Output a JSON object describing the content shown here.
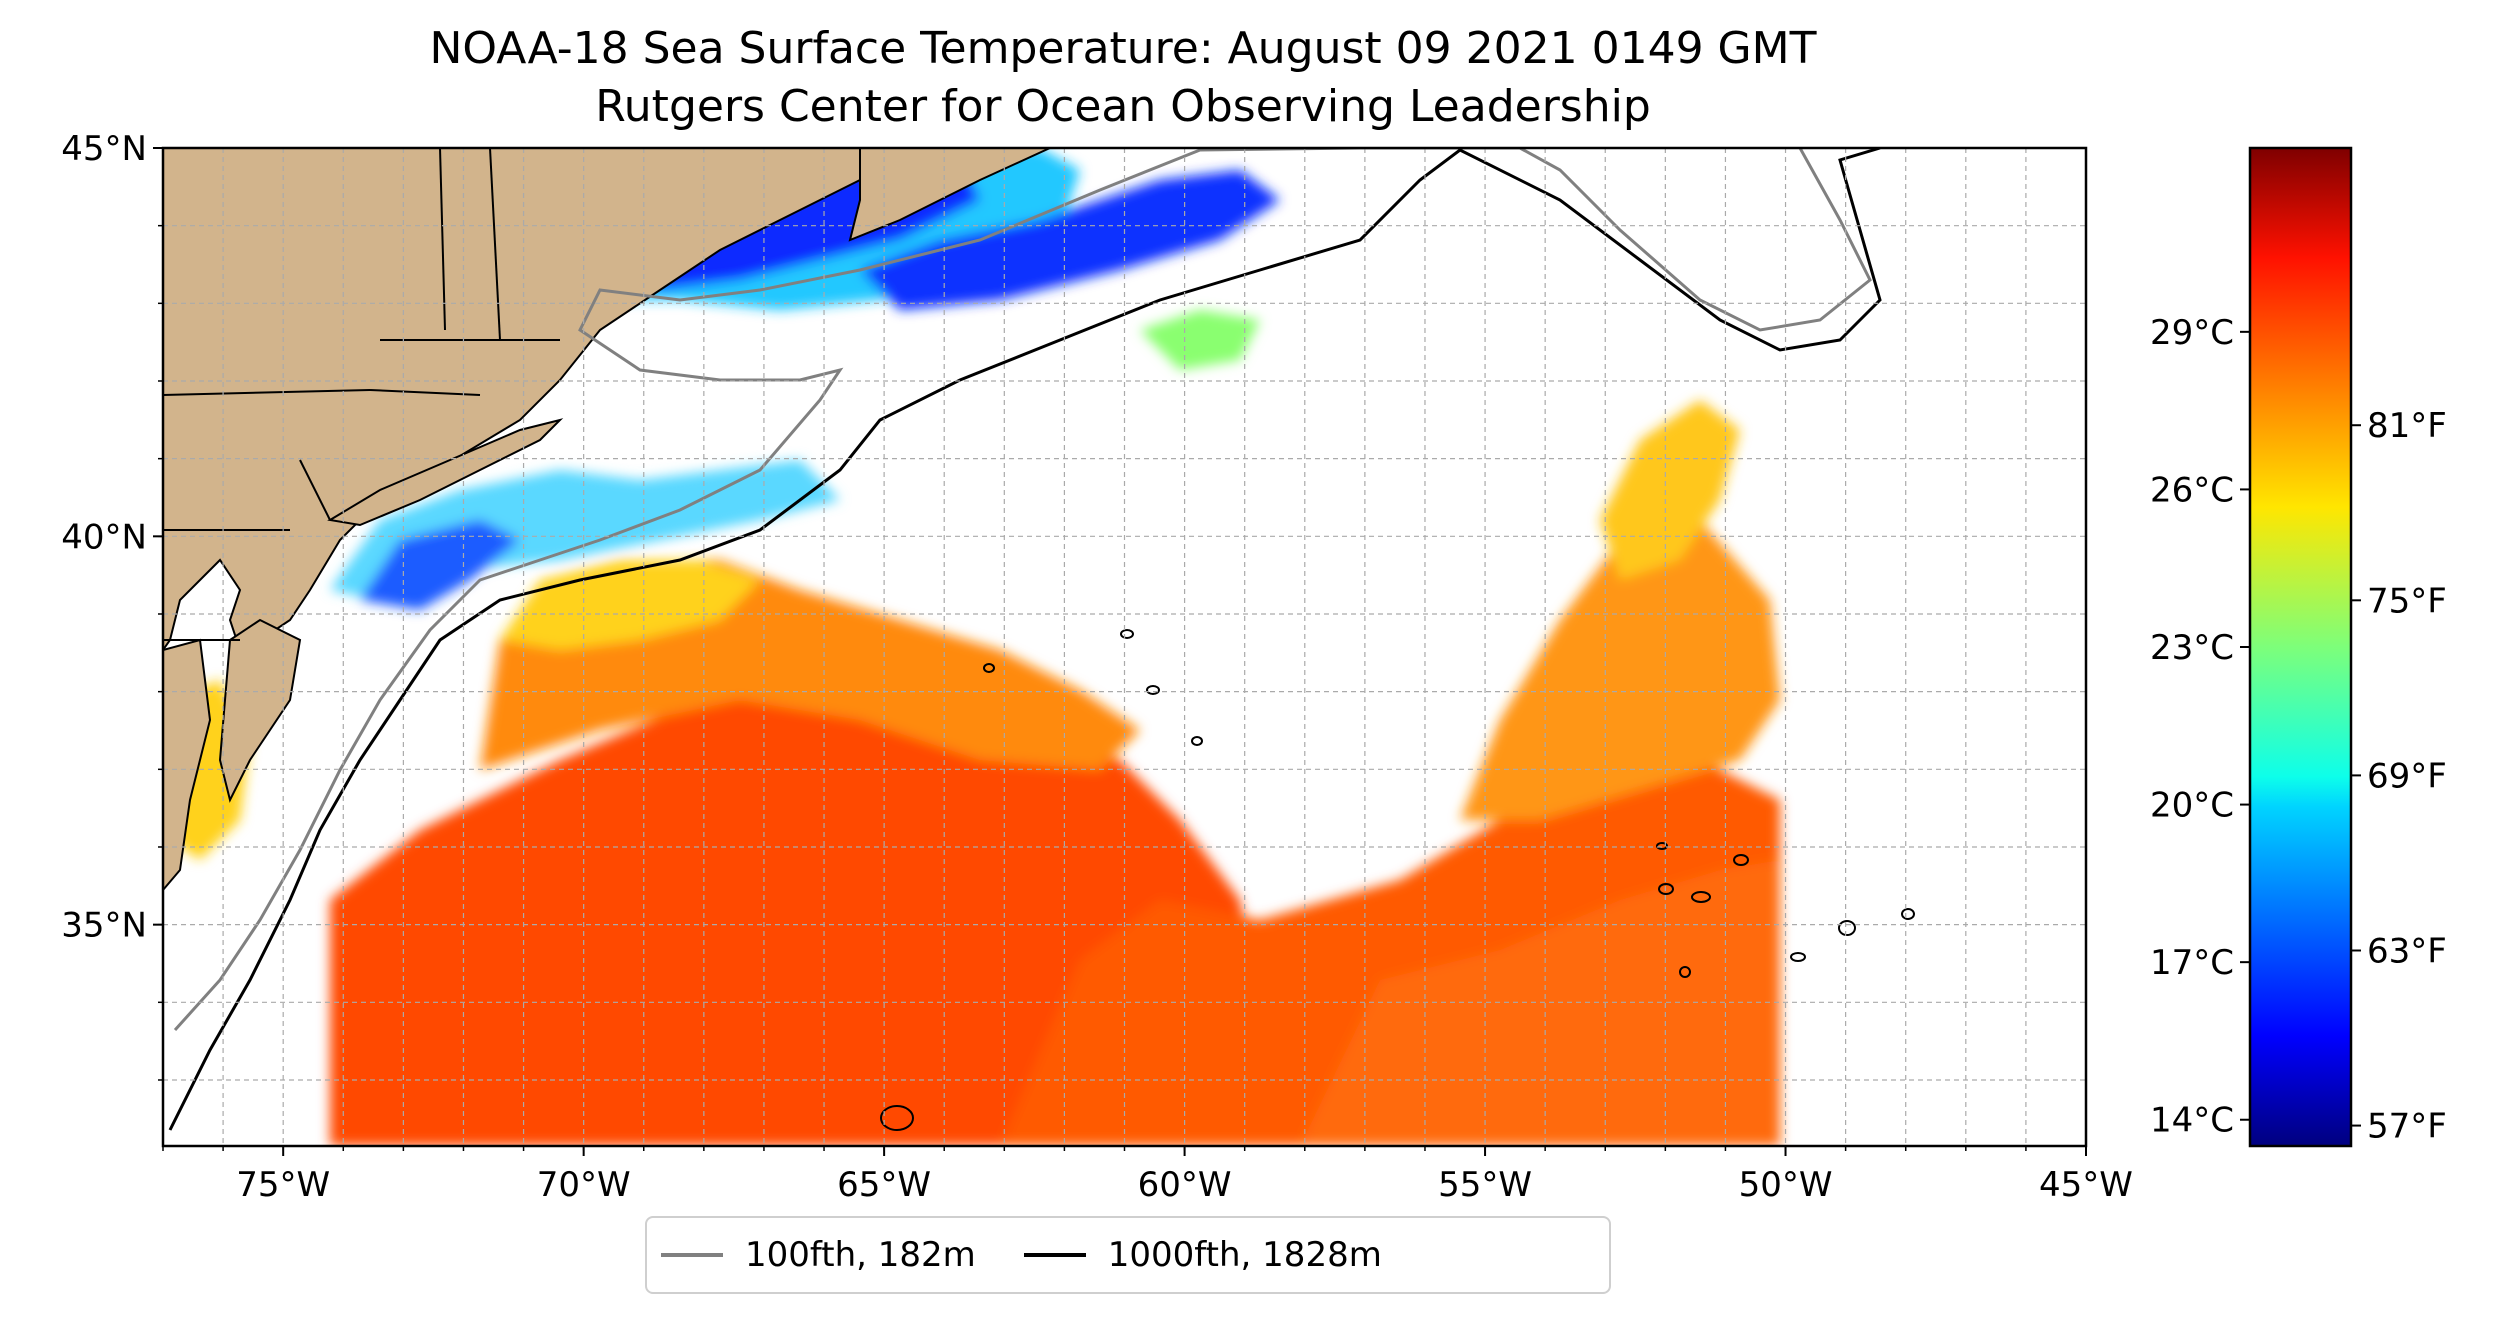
{
  "title": {
    "line1": "NOAA-18 Sea Surface Temperature: August 09 2021 0149 GMT",
    "line2": "Rutgers Center for Ocean Observing Leadership"
  },
  "map": {
    "lon_range": [
      -77,
      -45
    ],
    "lat_range": [
      32.15,
      45
    ],
    "lon_ticks": [
      {
        "value": -75,
        "label": "75°W"
      },
      {
        "value": -70,
        "label": "70°W"
      },
      {
        "value": -65,
        "label": "65°W"
      },
      {
        "value": -60,
        "label": "60°W"
      },
      {
        "value": -55,
        "label": "55°W"
      },
      {
        "value": -50,
        "label": "50°W"
      },
      {
        "value": -45,
        "label": "45°W"
      }
    ],
    "lat_ticks": [
      {
        "value": 35,
        "label": "35°N"
      },
      {
        "value": 40,
        "label": "40°N"
      },
      {
        "value": 45,
        "label": "45°N"
      }
    ],
    "gridlines": "on",
    "colors": {
      "land": "#d2b48c",
      "warm": "#ff4a00",
      "orange": "#ff8a10",
      "yellow": "#ffd21a",
      "cyan": "#20d0ff",
      "blue": "#0a2cff",
      "isobath_100": "#808080",
      "isobath_1000": "#000000"
    }
  },
  "colorbar": {
    "cmap": "jet",
    "celsius_ticks": [
      {
        "value": 14,
        "label": "14°C"
      },
      {
        "value": 17,
        "label": "17°C"
      },
      {
        "value": 20,
        "label": "20°C"
      },
      {
        "value": 23,
        "label": "23°C"
      },
      {
        "value": 26,
        "label": "26°C"
      },
      {
        "value": 29,
        "label": "29°C"
      }
    ],
    "fahrenheit_ticks": [
      {
        "value": 57,
        "label": "57°F"
      },
      {
        "value": 63,
        "label": "63°F"
      },
      {
        "value": 69,
        "label": "69°F"
      },
      {
        "value": 75,
        "label": "75°F"
      },
      {
        "value": 81,
        "label": "81°F"
      }
    ]
  },
  "legend": {
    "items": [
      {
        "label": "100fth, 182m",
        "color": "#808080"
      },
      {
        "label": "1000fth, 1828m",
        "color": "#000000"
      }
    ]
  }
}
